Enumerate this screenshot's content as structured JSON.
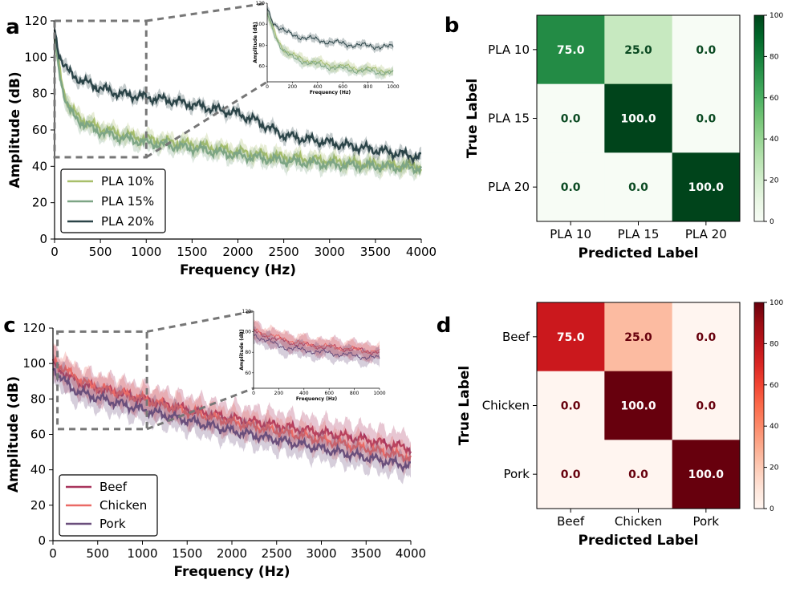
{
  "panels": {
    "a": {
      "letter": "a"
    },
    "b": {
      "letter": "b"
    },
    "c": {
      "letter": "c"
    },
    "d": {
      "letter": "d"
    }
  },
  "chart_data": [
    {
      "id": "a",
      "type": "line",
      "xlabel": "Frequency (Hz)",
      "ylabel": "Amplitude (dB)",
      "xlim": [
        0,
        4000
      ],
      "ylim": [
        0,
        120
      ],
      "xticks": [
        0,
        500,
        1000,
        1500,
        2000,
        2500,
        3000,
        3500,
        4000
      ],
      "yticks": [
        0,
        20,
        40,
        60,
        80,
        100,
        120
      ],
      "legend_position": "lower-left",
      "zoom_region": {
        "x": [
          0,
          1000
        ],
        "y": [
          45,
          120
        ]
      },
      "series": [
        {
          "name": "PLA 10%",
          "color": "#a8bf6a",
          "band": 4,
          "x": [
            0,
            50,
            100,
            150,
            200,
            300,
            400,
            500,
            700,
            1000,
            1500,
            2000,
            2500,
            3000,
            3500,
            4000
          ],
          "values": [
            108,
            95,
            82,
            74,
            70,
            66,
            63,
            61,
            58,
            55,
            52,
            48,
            45,
            43,
            41,
            40
          ]
        },
        {
          "name": "PLA 15%",
          "color": "#7da585",
          "band": 4,
          "x": [
            0,
            50,
            100,
            150,
            200,
            300,
            400,
            500,
            700,
            1000,
            1500,
            2000,
            2500,
            3000,
            3500,
            4000
          ],
          "values": [
            110,
            93,
            80,
            72,
            68,
            64,
            61,
            59,
            56,
            53,
            50,
            46,
            43,
            41,
            40,
            39
          ]
        },
        {
          "name": "PLA 20%",
          "color": "#2b4448",
          "band": 3,
          "x": [
            0,
            50,
            100,
            150,
            200,
            300,
            400,
            500,
            700,
            1000,
            1300,
            1500,
            2000,
            2200,
            2500,
            3000,
            3500,
            4000
          ],
          "values": [
            115,
            102,
            96,
            92,
            90,
            87,
            85,
            83,
            80,
            78,
            76,
            74,
            69,
            65,
            57,
            53,
            49,
            45
          ]
        }
      ],
      "inset": {
        "xlabel": "Frequency (Hz)",
        "ylabel": "Amplitude (dB)",
        "xticks": [
          0,
          200,
          400,
          600,
          800,
          1000
        ],
        "yticks": [
          60,
          80,
          100,
          120
        ]
      }
    },
    {
      "id": "b",
      "type": "heatmap",
      "xlabel": "Predicted Label",
      "ylabel": "True Label",
      "categories": [
        "PLA 10",
        "PLA 15",
        "PLA 20"
      ],
      "values": [
        [
          75.0,
          25.0,
          0.0
        ],
        [
          0.0,
          100.0,
          0.0
        ],
        [
          0.0,
          0.0,
          100.0
        ]
      ],
      "cell_labels": [
        [
          "75.0",
          "25.0",
          "0.0"
        ],
        [
          "0.0",
          "100.0",
          "0.0"
        ],
        [
          "0.0",
          "0.0",
          "100.0"
        ]
      ],
      "colormap": "greens",
      "colorbar_ticks": [
        0,
        20,
        40,
        60,
        80,
        100
      ]
    },
    {
      "id": "c",
      "type": "line",
      "xlabel": "Frequency (Hz)",
      "ylabel": "Amplitude (dB)",
      "xlim": [
        0,
        4000
      ],
      "ylim": [
        0,
        120
      ],
      "xticks": [
        0,
        500,
        1000,
        1500,
        2000,
        2500,
        3000,
        3500,
        4000
      ],
      "yticks": [
        0,
        20,
        40,
        60,
        80,
        100,
        120
      ],
      "legend_position": "lower-left",
      "zoom_region": {
        "x": [
          50,
          1050
        ],
        "y": [
          63,
          118
        ]
      },
      "series": [
        {
          "name": "Beef",
          "color": "#a8345c",
          "band": 8,
          "x": [
            0,
            100,
            200,
            400,
            700,
            1000,
            1500,
            2000,
            2500,
            3000,
            3500,
            4000
          ],
          "values": [
            100,
            96,
            92,
            87,
            84,
            80,
            74,
            69,
            65,
            61,
            57,
            52
          ]
        },
        {
          "name": "Chicken",
          "color": "#ea6a66",
          "band": 7,
          "x": [
            0,
            100,
            200,
            400,
            700,
            1000,
            1500,
            2000,
            2500,
            3000,
            3500,
            4000
          ],
          "values": [
            102,
            98,
            94,
            88,
            84,
            80,
            73,
            67,
            62,
            57,
            52,
            47
          ]
        },
        {
          "name": "Pork",
          "color": "#6a4f7c",
          "band": 7,
          "x": [
            0,
            100,
            200,
            400,
            700,
            1000,
            1500,
            2000,
            2500,
            3000,
            3500,
            4000
          ],
          "values": [
            97,
            92,
            86,
            82,
            78,
            74,
            68,
            62,
            57,
            52,
            47,
            42
          ]
        }
      ],
      "inset": {
        "xlabel": "Frequency (Hz)",
        "ylabel": "Amplitude (dB)",
        "xticks": [
          0,
          200,
          400,
          600,
          800,
          1000
        ],
        "yticks": [
          60,
          80,
          100,
          120
        ]
      }
    },
    {
      "id": "d",
      "type": "heatmap",
      "xlabel": "Predicted Label",
      "ylabel": "True Label",
      "categories": [
        "Beef",
        "Chicken",
        "Pork"
      ],
      "values": [
        [
          75.0,
          25.0,
          0.0
        ],
        [
          0.0,
          100.0,
          0.0
        ],
        [
          0.0,
          0.0,
          100.0
        ]
      ],
      "cell_labels": [
        [
          "75.0",
          "25.0",
          "0.0"
        ],
        [
          "0.0",
          "100.0",
          "0.0"
        ],
        [
          "0.0",
          "0.0",
          "100.0"
        ]
      ],
      "colormap": "reds",
      "colorbar_ticks": [
        0,
        20,
        40,
        60,
        80,
        100
      ]
    }
  ]
}
